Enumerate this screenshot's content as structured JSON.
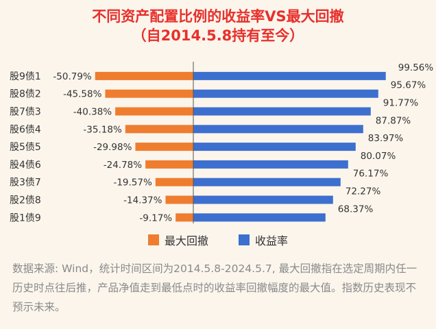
{
  "title": "不同资产配置比例的收益率VS最大回撤",
  "subtitle": "（自2014.5.8持有至今）",
  "chart_data": {
    "type": "bar",
    "categories": [
      "股9债1",
      "股8债2",
      "股7债3",
      "股6债4",
      "股5债5",
      "股4债6",
      "股3债7",
      "股2债8",
      "股1债9"
    ],
    "series": [
      {
        "name": "最大回撤",
        "color": "#ef7d2f",
        "values": [
          -50.79,
          -45.58,
          -40.38,
          -35.18,
          -29.98,
          -24.78,
          -19.57,
          -14.37,
          -9.17
        ],
        "labels": [
          "-50.79%",
          "-45.58%",
          "-40.38%",
          "-35.18%",
          "-29.98%",
          "-24.78%",
          "-19.57%",
          "-14.37%",
          "-9.17%"
        ]
      },
      {
        "name": "收益率",
        "color": "#3d6fcf",
        "values": [
          99.56,
          95.67,
          91.77,
          87.87,
          83.97,
          80.07,
          76.17,
          72.27,
          68.37
        ],
        "labels": [
          "99.56%",
          "95.67%",
          "91.77%",
          "87.87%",
          "83.97%",
          "80.07%",
          "76.17%",
          "72.27%",
          "68.37%"
        ]
      }
    ],
    "orientation": "horizontal",
    "legend_position": "bottom"
  },
  "legend": {
    "drawdown": "最大回撤",
    "return": "收益率"
  },
  "note": "数据来源: Wind，统计时间区间为2014.5.8-2024.5.7, 最大回撤指在选定周期内任一历史时点往后推，产品净值走到最低点时的收益率回撤幅度的最大值。指数历史表现不预示未来。"
}
